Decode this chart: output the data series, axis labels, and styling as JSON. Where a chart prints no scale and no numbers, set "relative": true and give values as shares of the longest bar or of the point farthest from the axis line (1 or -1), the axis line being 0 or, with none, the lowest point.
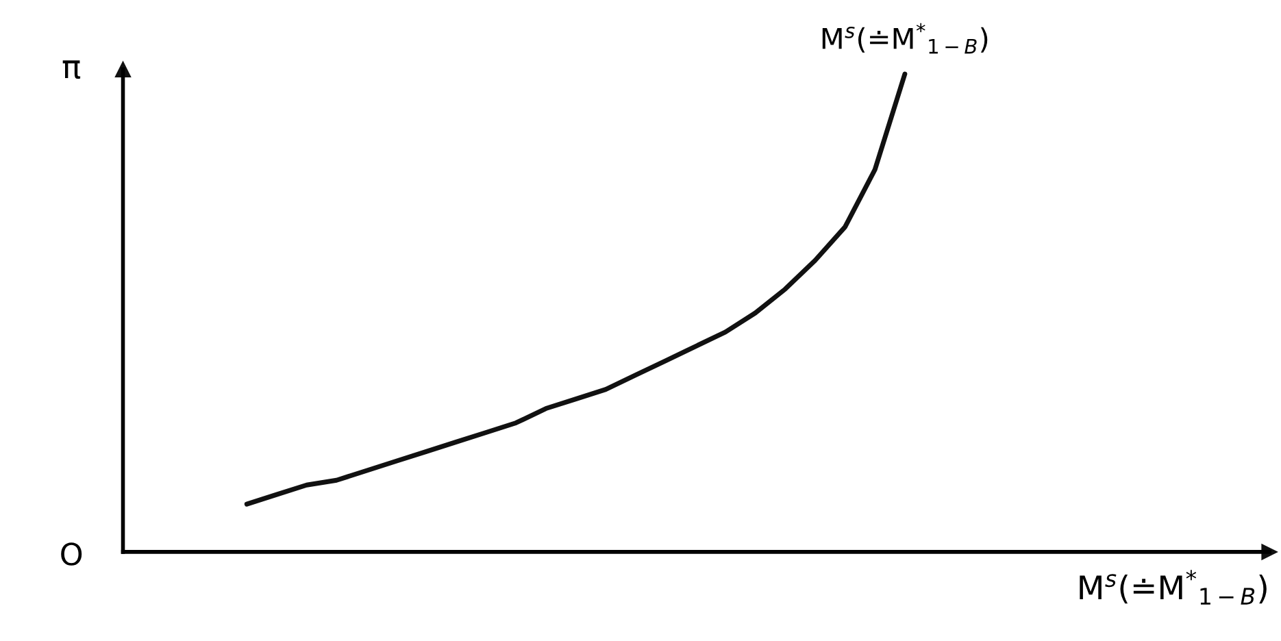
{
  "chart_data": {
    "type": "line",
    "relative": true,
    "grid": false,
    "legend": false,
    "marker": "none",
    "line_style": "solid",
    "ylabel": "π",
    "xlabel": "M$^{s}$(≐M$^{*}$$_{1−B}$)",
    "annotations": [
      "O"
    ],
    "categories": [
      null,
      null,
      null,
      null,
      null,
      null,
      null,
      null,
      null,
      null,
      null,
      null,
      null,
      null,
      null,
      null,
      null,
      null,
      null,
      null,
      null,
      null,
      null
    ],
    "series": [
      {
        "name": "M$^{s}$(≐M$^{*}$$_{1−B}$)",
        "color": "#111111",
        "values": [
          0.1,
          0.12,
          0.14,
          0.15,
          0.17,
          0.19,
          0.21,
          0.23,
          0.25,
          0.27,
          0.3,
          0.32,
          0.34,
          0.37,
          0.4,
          0.43,
          0.46,
          0.5,
          0.55,
          0.61,
          0.68,
          0.8,
          1.0
        ]
      }
    ]
  }
}
